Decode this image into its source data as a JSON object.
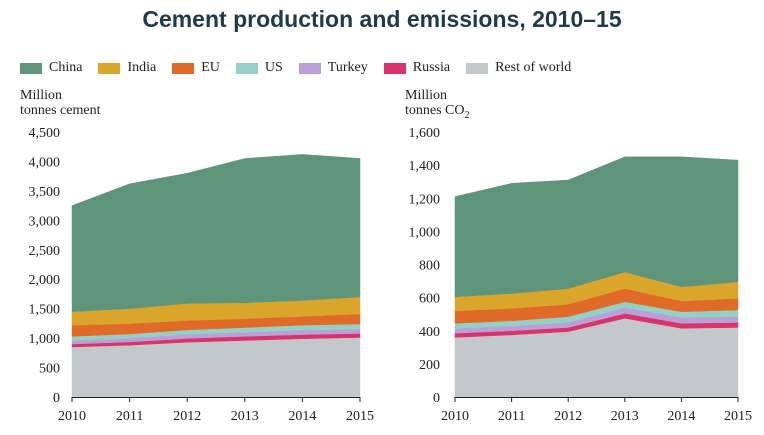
{
  "title": "Cement production and emissions, 2010–15",
  "legend": [
    {
      "name": "China",
      "color": "#5e9479"
    },
    {
      "name": "India",
      "color": "#d9a52b"
    },
    {
      "name": "EU",
      "color": "#e06a28"
    },
    {
      "name": "US",
      "color": "#95d0c7"
    },
    {
      "name": "Turkey",
      "color": "#bb9fd6"
    },
    {
      "name": "Russia",
      "color": "#d9336b"
    },
    {
      "name": "Rest of world",
      "color": "#c3c8ca"
    }
  ],
  "chart_data": [
    {
      "type": "area",
      "stacked": true,
      "ylabel_line1": "Million",
      "ylabel_line2": "tonnes cement",
      "x": [
        "2010",
        "2011",
        "2012",
        "2013",
        "2014",
        "2015"
      ],
      "ylim": [
        0,
        4500
      ],
      "yticks": [
        "0",
        "500",
        "1,000",
        "1,500",
        "2,000",
        "2,500",
        "3,000",
        "3,500",
        "4,000",
        "4,500"
      ],
      "series": [
        {
          "name": "Rest of world",
          "color": "#c3c8ca",
          "values": [
            850,
            880,
            930,
            960,
            990,
            1010
          ]
        },
        {
          "name": "Russia",
          "color": "#d9336b",
          "values": [
            50,
            55,
            65,
            70,
            70,
            70
          ]
        },
        {
          "name": "Turkey",
          "color": "#bb9fd6",
          "values": [
            60,
            65,
            70,
            70,
            75,
            75
          ]
        },
        {
          "name": "US",
          "color": "#95d0c7",
          "values": [
            70,
            70,
            75,
            80,
            85,
            85
          ]
        },
        {
          "name": "EU",
          "color": "#e06a28",
          "values": [
            190,
            175,
            160,
            150,
            150,
            170
          ]
        },
        {
          "name": "India",
          "color": "#d9a52b",
          "values": [
            230,
            255,
            290,
            270,
            270,
            290
          ]
        },
        {
          "name": "China",
          "color": "#5e9479",
          "values": [
            1800,
            2120,
            2210,
            2450,
            2480,
            2350
          ]
        }
      ]
    },
    {
      "type": "area",
      "stacked": true,
      "ylabel_line1": "Million",
      "ylabel_line2": "tonnes CO",
      "ylabel_sub": "2",
      "x": [
        "2010",
        "2011",
        "2012",
        "2013",
        "2014",
        "2015"
      ],
      "ylim": [
        0,
        1600
      ],
      "yticks": [
        "0",
        "200",
        "400",
        "600",
        "800",
        "1,000",
        "1,200",
        "1,400",
        "1,600"
      ],
      "series": [
        {
          "name": "Rest of world",
          "color": "#c3c8ca",
          "values": [
            360,
            375,
            395,
            475,
            415,
            420
          ]
        },
        {
          "name": "Russia",
          "color": "#d9336b",
          "values": [
            25,
            25,
            25,
            30,
            30,
            30
          ]
        },
        {
          "name": "Turkey",
          "color": "#bb9fd6",
          "values": [
            30,
            30,
            30,
            35,
            35,
            35
          ]
        },
        {
          "name": "US",
          "color": "#95d0c7",
          "values": [
            30,
            30,
            35,
            35,
            35,
            40
          ]
        },
        {
          "name": "EU",
          "color": "#e06a28",
          "values": [
            75,
            75,
            75,
            80,
            65,
            70
          ]
        },
        {
          "name": "India",
          "color": "#d9a52b",
          "values": [
            85,
            90,
            95,
            100,
            85,
            100
          ]
        },
        {
          "name": "China",
          "color": "#5e9479",
          "values": [
            605,
            665,
            655,
            695,
            785,
            735
          ]
        }
      ]
    }
  ]
}
